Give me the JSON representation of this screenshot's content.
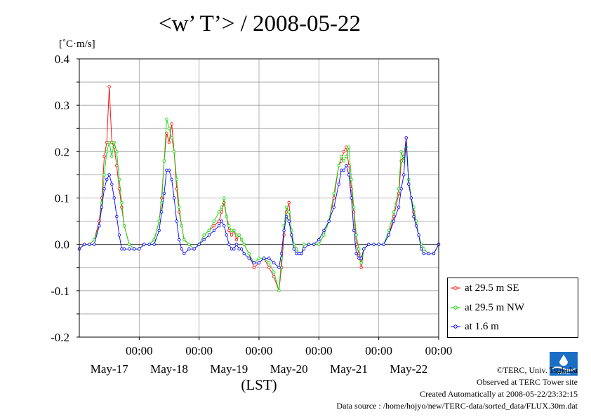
{
  "title": "<w’ T’> / 2008-05-22",
  "unit": "[˚C·m/s]",
  "xlabel": "(LST)",
  "footer": {
    "credit": "©TERC, Univ. Tsukuba",
    "site": "Observed at TERC Tower site",
    "created": "Created Automatically at 2008-05-22/23:32:15",
    "source": "Data source : /home/hojyo/new/TERC-data/sorted_data/FLUX.30m.dat"
  },
  "logo_text": "TERC",
  "colors": {
    "se": "#ff0000",
    "nw": "#00e000",
    "low": "#0000ff"
  },
  "chart_data": {
    "type": "line",
    "title": "<w’ T’> / 2008-05-22",
    "ylabel": "[˚C·m/s]",
    "xlabel": "(LST)",
    "ylim": [
      -0.2,
      0.4
    ],
    "yticks": [
      "0.4",
      "0.3",
      "0.2",
      "0.1",
      "0.0",
      "-0.1",
      "-0.2"
    ],
    "xlim": [
      0,
      6
    ],
    "xticks": [
      {
        "time": "00:00",
        "date": "May-17"
      },
      {
        "time": "00:00",
        "date": "May-18"
      },
      {
        "time": "00:00",
        "date": "May-19"
      },
      {
        "time": "00:00",
        "date": "May-20"
      },
      {
        "time": "00:00",
        "date": "May-21"
      },
      {
        "time": "00:00",
        "date": "May-22"
      }
    ],
    "grid": true,
    "legend_position": "right",
    "series": [
      {
        "name": "at 29.5 m SE",
        "color": "#ff0000",
        "x": [
          0.0,
          0.083,
          0.167,
          0.25,
          0.333,
          0.375,
          0.417,
          0.458,
          0.5,
          0.542,
          0.583,
          0.625,
          0.667,
          0.708,
          0.75,
          0.833,
          0.917,
          1.0,
          1.083,
          1.167,
          1.25,
          1.333,
          1.375,
          1.417,
          1.458,
          1.5,
          1.542,
          1.583,
          1.625,
          1.667,
          1.708,
          1.75,
          1.833,
          1.917,
          2.0,
          2.083,
          2.167,
          2.25,
          2.333,
          2.375,
          2.417,
          2.458,
          2.5,
          2.542,
          2.583,
          2.625,
          2.667,
          2.708,
          2.75,
          2.833,
          2.917,
          3.0,
          3.083,
          3.167,
          3.25,
          3.333,
          3.375,
          3.417,
          3.458,
          3.5,
          3.542,
          3.583,
          3.625,
          3.667,
          3.708,
          3.75,
          3.833,
          3.917,
          4.0,
          4.083,
          4.167,
          4.25,
          4.333,
          4.375,
          4.417,
          4.458,
          4.5,
          4.542,
          4.583,
          4.625,
          4.667,
          4.708,
          4.75,
          4.833,
          4.917,
          5.0,
          5.083,
          5.167,
          5.25,
          5.333,
          5.375,
          5.417,
          5.458,
          5.5,
          5.542,
          5.583,
          5.625,
          5.667,
          5.708,
          5.75,
          5.833,
          5.917,
          6.0
        ],
        "y": [
          -0.01,
          0.0,
          0.0,
          0.01,
          0.05,
          0.1,
          0.19,
          0.22,
          0.34,
          0.22,
          0.21,
          0.17,
          0.12,
          0.08,
          0.04,
          0.0,
          -0.01,
          -0.01,
          0.0,
          0.0,
          0.01,
          0.05,
          0.1,
          0.18,
          0.24,
          0.22,
          0.26,
          0.2,
          0.12,
          0.07,
          0.04,
          0.01,
          0.0,
          -0.01,
          0.0,
          0.02,
          0.03,
          0.04,
          0.05,
          0.07,
          0.09,
          0.06,
          0.03,
          0.02,
          0.03,
          0.01,
          0.02,
          0.01,
          0.0,
          -0.02,
          -0.05,
          -0.04,
          -0.03,
          -0.05,
          -0.07,
          -0.1,
          -0.05,
          0.02,
          0.07,
          0.09,
          0.02,
          0.0,
          -0.01,
          -0.02,
          -0.02,
          0.0,
          0.0,
          0.0,
          0.0,
          0.02,
          0.05,
          0.1,
          0.17,
          0.18,
          0.2,
          0.21,
          0.17,
          0.12,
          0.07,
          0.0,
          -0.02,
          -0.05,
          -0.01,
          0.0,
          0.0,
          0.0,
          0.0,
          0.02,
          0.06,
          0.11,
          0.18,
          0.19,
          0.23,
          0.13,
          0.1,
          0.07,
          0.04,
          0.02,
          0.0,
          -0.01,
          -0.02,
          -0.02,
          0.0
        ]
      },
      {
        "name": "at 29.5 m NW",
        "color": "#00e000",
        "x": [
          0.0,
          0.083,
          0.167,
          0.25,
          0.333,
          0.375,
          0.417,
          0.458,
          0.5,
          0.542,
          0.583,
          0.625,
          0.667,
          0.708,
          0.75,
          0.833,
          0.917,
          1.0,
          1.083,
          1.167,
          1.25,
          1.333,
          1.375,
          1.417,
          1.458,
          1.5,
          1.542,
          1.583,
          1.625,
          1.667,
          1.708,
          1.75,
          1.833,
          1.917,
          2.0,
          2.083,
          2.167,
          2.25,
          2.333,
          2.375,
          2.417,
          2.458,
          2.5,
          2.542,
          2.583,
          2.625,
          2.667,
          2.708,
          2.75,
          2.833,
          2.917,
          3.0,
          3.083,
          3.167,
          3.25,
          3.333,
          3.375,
          3.417,
          3.458,
          3.5,
          3.542,
          3.583,
          3.625,
          3.667,
          3.708,
          3.75,
          3.833,
          3.917,
          4.0,
          4.083,
          4.167,
          4.25,
          4.333,
          4.375,
          4.417,
          4.458,
          4.5,
          4.542,
          4.583,
          4.625,
          4.667,
          4.708,
          4.75,
          4.833,
          4.917,
          5.0,
          5.083,
          5.167,
          5.25,
          5.333,
          5.375,
          5.417,
          5.458,
          5.5,
          5.542,
          5.583,
          5.625,
          5.667,
          5.708,
          5.75,
          5.833,
          5.917,
          6.0
        ],
        "y": [
          -0.01,
          0.0,
          0.0,
          0.01,
          0.04,
          0.09,
          0.15,
          0.2,
          0.22,
          0.19,
          0.22,
          0.2,
          0.14,
          0.09,
          0.04,
          0.0,
          -0.01,
          -0.01,
          0.0,
          0.0,
          0.01,
          0.05,
          0.09,
          0.18,
          0.27,
          0.25,
          0.23,
          0.2,
          0.14,
          0.08,
          0.04,
          0.01,
          0.0,
          -0.01,
          0.0,
          0.02,
          0.03,
          0.05,
          0.07,
          0.08,
          0.1,
          0.06,
          0.04,
          0.03,
          0.03,
          0.02,
          0.02,
          0.01,
          0.0,
          -0.02,
          -0.04,
          -0.03,
          -0.03,
          -0.04,
          -0.06,
          -0.1,
          -0.03,
          0.04,
          0.08,
          0.07,
          0.03,
          0.0,
          -0.01,
          -0.02,
          -0.02,
          0.0,
          0.0,
          0.0,
          0.0,
          0.02,
          0.05,
          0.11,
          0.17,
          0.19,
          0.18,
          0.19,
          0.21,
          0.14,
          0.08,
          0.02,
          -0.01,
          -0.04,
          -0.01,
          0.0,
          0.0,
          0.0,
          0.0,
          0.03,
          0.07,
          0.12,
          0.2,
          0.18,
          0.21,
          0.14,
          0.1,
          0.08,
          0.05,
          0.02,
          0.0,
          -0.01,
          -0.02,
          -0.02,
          0.0
        ]
      },
      {
        "name": "at 1.6 m",
        "color": "#0000ff",
        "x": [
          0.0,
          0.083,
          0.167,
          0.25,
          0.333,
          0.375,
          0.417,
          0.458,
          0.5,
          0.542,
          0.583,
          0.625,
          0.667,
          0.708,
          0.75,
          0.833,
          0.917,
          1.0,
          1.083,
          1.167,
          1.25,
          1.333,
          1.375,
          1.417,
          1.458,
          1.5,
          1.542,
          1.583,
          1.625,
          1.667,
          1.708,
          1.75,
          1.833,
          1.917,
          2.0,
          2.083,
          2.167,
          2.25,
          2.333,
          2.375,
          2.417,
          2.458,
          2.5,
          2.542,
          2.583,
          2.625,
          2.667,
          2.708,
          2.75,
          2.833,
          2.917,
          3.0,
          3.083,
          3.167,
          3.25,
          3.333,
          3.375,
          3.417,
          3.458,
          3.5,
          3.542,
          3.583,
          3.625,
          3.667,
          3.708,
          3.75,
          3.833,
          3.917,
          4.0,
          4.083,
          4.167,
          4.25,
          4.333,
          4.375,
          4.417,
          4.458,
          4.5,
          4.542,
          4.583,
          4.625,
          4.667,
          4.708,
          4.75,
          4.833,
          4.917,
          5.0,
          5.083,
          5.167,
          5.25,
          5.333,
          5.375,
          5.417,
          5.458,
          5.5,
          5.542,
          5.583,
          5.625,
          5.667,
          5.708,
          5.75,
          5.833,
          5.917,
          6.0
        ],
        "y": [
          -0.01,
          0.0,
          0.0,
          0.0,
          0.04,
          0.08,
          0.12,
          0.14,
          0.15,
          0.13,
          0.1,
          0.06,
          0.02,
          -0.01,
          -0.01,
          -0.01,
          -0.01,
          -0.01,
          0.0,
          0.0,
          0.0,
          0.03,
          0.07,
          0.11,
          0.16,
          0.16,
          0.14,
          0.1,
          0.05,
          0.01,
          -0.01,
          -0.02,
          -0.01,
          -0.01,
          0.0,
          0.01,
          0.02,
          0.03,
          0.04,
          0.05,
          0.04,
          0.02,
          0.0,
          -0.01,
          -0.01,
          0.0,
          -0.01,
          -0.01,
          -0.02,
          -0.03,
          -0.04,
          -0.04,
          -0.03,
          -0.03,
          -0.04,
          -0.05,
          -0.02,
          0.03,
          0.06,
          0.05,
          0.02,
          -0.01,
          -0.02,
          -0.02,
          -0.02,
          -0.01,
          0.0,
          0.0,
          0.01,
          0.03,
          0.05,
          0.08,
          0.13,
          0.16,
          0.16,
          0.17,
          0.15,
          0.1,
          0.03,
          -0.02,
          -0.03,
          -0.03,
          -0.01,
          0.0,
          0.0,
          0.0,
          0.0,
          0.02,
          0.05,
          0.08,
          0.12,
          0.15,
          0.23,
          0.13,
          0.1,
          0.06,
          0.04,
          0.02,
          -0.01,
          -0.02,
          -0.02,
          -0.02,
          0.0
        ]
      }
    ]
  }
}
